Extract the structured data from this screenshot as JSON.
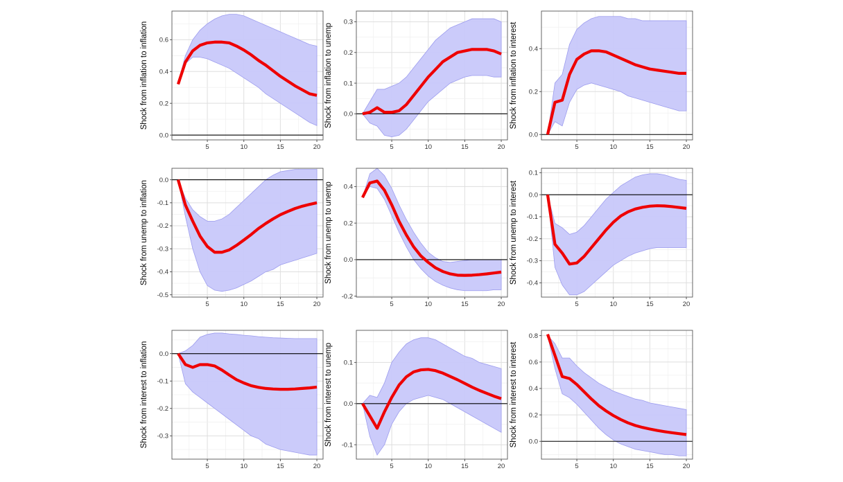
{
  "chart_data": [
    {
      "type": "line",
      "ylabel": "Shock from  inflation  to inflation",
      "x": [
        1,
        2,
        3,
        4,
        5,
        6,
        7,
        8,
        9,
        10,
        11,
        12,
        13,
        14,
        15,
        16,
        17,
        18,
        19,
        20
      ],
      "ylim": [
        -0.03,
        0.78
      ],
      "yticks": [
        0.0,
        0.2,
        0.4,
        0.6
      ],
      "ytick_labels": [
        "0.0",
        "0.2",
        "0.4",
        "0.6"
      ],
      "xticks": [
        5,
        10,
        15,
        20
      ],
      "xtick_labels": [
        "5",
        "10",
        "15",
        "20"
      ],
      "series": [
        {
          "name": "lower",
          "values": [
            0.33,
            0.45,
            0.49,
            0.49,
            0.48,
            0.46,
            0.44,
            0.42,
            0.39,
            0.36,
            0.33,
            0.3,
            0.26,
            0.23,
            0.2,
            0.17,
            0.14,
            0.11,
            0.08,
            0.06
          ]
        },
        {
          "name": "upper",
          "values": [
            0.33,
            0.5,
            0.6,
            0.66,
            0.7,
            0.73,
            0.75,
            0.76,
            0.76,
            0.75,
            0.73,
            0.71,
            0.69,
            0.67,
            0.65,
            0.63,
            0.61,
            0.59,
            0.57,
            0.56
          ]
        },
        {
          "name": "irf",
          "values": [
            0.32,
            0.46,
            0.53,
            0.565,
            0.58,
            0.585,
            0.585,
            0.58,
            0.56,
            0.535,
            0.505,
            0.47,
            0.44,
            0.405,
            0.37,
            0.34,
            0.31,
            0.285,
            0.26,
            0.25
          ]
        }
      ]
    },
    {
      "type": "line",
      "ylabel": "Shock from  inflation  to unemp",
      "x": [
        1,
        2,
        3,
        4,
        5,
        6,
        7,
        8,
        9,
        10,
        11,
        12,
        13,
        14,
        15,
        16,
        17,
        18,
        19,
        20
      ],
      "ylim": [
        -0.085,
        0.335
      ],
      "yticks": [
        0.0,
        0.1,
        0.2,
        0.3
      ],
      "ytick_labels": [
        "0.0",
        "0.1",
        "0.2",
        "0.3"
      ],
      "xticks": [
        5,
        10,
        15,
        20
      ],
      "xtick_labels": [
        "5",
        "10",
        "15",
        "20"
      ],
      "series": [
        {
          "name": "lower",
          "values": [
            0.0,
            -0.03,
            -0.04,
            -0.07,
            -0.075,
            -0.07,
            -0.05,
            -0.02,
            0.01,
            0.04,
            0.06,
            0.08,
            0.1,
            0.11,
            0.12,
            0.125,
            0.125,
            0.125,
            0.12,
            0.12
          ]
        },
        {
          "name": "upper",
          "values": [
            0.0,
            0.04,
            0.08,
            0.08,
            0.09,
            0.1,
            0.12,
            0.15,
            0.18,
            0.21,
            0.24,
            0.26,
            0.28,
            0.29,
            0.3,
            0.31,
            0.31,
            0.31,
            0.31,
            0.3
          ]
        },
        {
          "name": "irf",
          "values": [
            0.0,
            0.005,
            0.02,
            0.005,
            0.005,
            0.01,
            0.03,
            0.06,
            0.09,
            0.12,
            0.145,
            0.17,
            0.185,
            0.2,
            0.205,
            0.21,
            0.21,
            0.21,
            0.205,
            0.195
          ]
        }
      ]
    },
    {
      "type": "line",
      "ylabel": "Shock from  inflation  to interest",
      "x": [
        1,
        2,
        3,
        4,
        5,
        6,
        7,
        8,
        9,
        10,
        11,
        12,
        13,
        14,
        15,
        16,
        17,
        18,
        19,
        20
      ],
      "ylim": [
        -0.025,
        0.575
      ],
      "yticks": [
        0.0,
        0.2,
        0.4
      ],
      "ytick_labels": [
        "0.0",
        "0.2",
        "0.4"
      ],
      "xticks": [
        5,
        10,
        15,
        20
      ],
      "xtick_labels": [
        "5",
        "10",
        "15",
        "20"
      ],
      "series": [
        {
          "name": "lower",
          "values": [
            0.0,
            0.06,
            0.04,
            0.15,
            0.21,
            0.23,
            0.24,
            0.23,
            0.22,
            0.21,
            0.2,
            0.18,
            0.17,
            0.16,
            0.15,
            0.14,
            0.13,
            0.12,
            0.11,
            0.11
          ]
        },
        {
          "name": "upper",
          "values": [
            0.0,
            0.24,
            0.28,
            0.42,
            0.49,
            0.52,
            0.54,
            0.55,
            0.55,
            0.55,
            0.55,
            0.54,
            0.54,
            0.53,
            0.53,
            0.53,
            0.53,
            0.53,
            0.53,
            0.53
          ]
        },
        {
          "name": "irf",
          "values": [
            0.0,
            0.15,
            0.16,
            0.28,
            0.35,
            0.375,
            0.39,
            0.39,
            0.385,
            0.37,
            0.355,
            0.34,
            0.325,
            0.315,
            0.305,
            0.3,
            0.295,
            0.29,
            0.285,
            0.285
          ]
        }
      ]
    },
    {
      "type": "line",
      "ylabel": "Shock from  unemp  to inflation",
      "x": [
        1,
        2,
        3,
        4,
        5,
        6,
        7,
        8,
        9,
        10,
        11,
        12,
        13,
        14,
        15,
        16,
        17,
        18,
        19,
        20
      ],
      "ylim": [
        -0.51,
        0.05
      ],
      "yticks": [
        0.0,
        -0.1,
        -0.2,
        -0.3,
        -0.4,
        -0.5
      ],
      "ytick_labels": [
        "0.0",
        "-0.1",
        "-0.2",
        "-0.3",
        "-0.4",
        "-0.5"
      ],
      "xticks": [
        5,
        10,
        15,
        20
      ],
      "xtick_labels": [
        "5",
        "10",
        "15",
        "20"
      ],
      "series": [
        {
          "name": "lower",
          "values": [
            0.0,
            -0.16,
            -0.3,
            -0.4,
            -0.46,
            -0.48,
            -0.485,
            -0.48,
            -0.47,
            -0.455,
            -0.44,
            -0.42,
            -0.4,
            -0.39,
            -0.37,
            -0.36,
            -0.35,
            -0.34,
            -0.33,
            -0.32
          ]
        },
        {
          "name": "upper",
          "values": [
            0.0,
            -0.08,
            -0.13,
            -0.16,
            -0.18,
            -0.18,
            -0.17,
            -0.15,
            -0.12,
            -0.09,
            -0.06,
            -0.03,
            0.0,
            0.02,
            0.035,
            0.04,
            0.045,
            0.045,
            0.045,
            0.045
          ]
        },
        {
          "name": "irf",
          "values": [
            0.0,
            -0.11,
            -0.18,
            -0.245,
            -0.29,
            -0.315,
            -0.315,
            -0.305,
            -0.285,
            -0.262,
            -0.238,
            -0.212,
            -0.19,
            -0.17,
            -0.152,
            -0.138,
            -0.125,
            -0.115,
            -0.107,
            -0.1
          ]
        }
      ]
    },
    {
      "type": "line",
      "ylabel": "Shock from  unemp  to unemp",
      "x": [
        1,
        2,
        3,
        4,
        5,
        6,
        7,
        8,
        9,
        10,
        11,
        12,
        13,
        14,
        15,
        16,
        17,
        18,
        19,
        20
      ],
      "ylim": [
        -0.205,
        0.5
      ],
      "yticks": [
        -0.2,
        0.0,
        0.2,
        0.4
      ],
      "ytick_labels": [
        "-0.2",
        "0.0",
        "0.2",
        "0.4"
      ],
      "xticks": [
        5,
        10,
        15,
        20
      ],
      "xtick_labels": [
        "5",
        "10",
        "15",
        "20"
      ],
      "series": [
        {
          "name": "lower",
          "values": [
            0.34,
            0.4,
            0.39,
            0.33,
            0.24,
            0.15,
            0.07,
            0.0,
            -0.05,
            -0.09,
            -0.12,
            -0.14,
            -0.155,
            -0.165,
            -0.17,
            -0.17,
            -0.17,
            -0.17,
            -0.165,
            -0.165
          ]
        },
        {
          "name": "upper",
          "values": [
            0.34,
            0.47,
            0.5,
            0.46,
            0.39,
            0.3,
            0.22,
            0.15,
            0.09,
            0.04,
            0.01,
            -0.01,
            -0.015,
            -0.01,
            -0.005,
            0.0,
            0.0,
            0.0,
            0.0,
            0.0
          ]
        },
        {
          "name": "irf",
          "values": [
            0.34,
            0.42,
            0.43,
            0.38,
            0.3,
            0.21,
            0.135,
            0.07,
            0.02,
            -0.015,
            -0.045,
            -0.065,
            -0.078,
            -0.085,
            -0.086,
            -0.085,
            -0.082,
            -0.078,
            -0.073,
            -0.068
          ]
        }
      ]
    },
    {
      "type": "line",
      "ylabel": "Shock from  unemp  to interest",
      "x": [
        1,
        2,
        3,
        4,
        5,
        6,
        7,
        8,
        9,
        10,
        11,
        12,
        13,
        14,
        15,
        16,
        17,
        18,
        19,
        20
      ],
      "ylim": [
        -0.465,
        0.12
      ],
      "yticks": [
        0.1,
        0.0,
        -0.1,
        -0.2,
        -0.3,
        -0.4
      ],
      "ytick_labels": [
        "0.1",
        "0.0",
        "-0.1",
        "-0.2",
        "-0.3",
        "-0.4"
      ],
      "xticks": [
        5,
        10,
        15,
        20
      ],
      "xtick_labels": [
        "5",
        "10",
        "15",
        "20"
      ],
      "series": [
        {
          "name": "lower",
          "values": [
            0.0,
            -0.33,
            -0.41,
            -0.455,
            -0.455,
            -0.44,
            -0.41,
            -0.38,
            -0.35,
            -0.32,
            -0.3,
            -0.28,
            -0.265,
            -0.255,
            -0.245,
            -0.24,
            -0.24,
            -0.24,
            -0.24,
            -0.24
          ]
        },
        {
          "name": "upper",
          "values": [
            0.0,
            -0.13,
            -0.15,
            -0.18,
            -0.17,
            -0.14,
            -0.1,
            -0.06,
            -0.02,
            0.01,
            0.04,
            0.06,
            0.08,
            0.09,
            0.095,
            0.095,
            0.09,
            0.08,
            0.07,
            0.065
          ]
        },
        {
          "name": "irf",
          "values": [
            0.0,
            -0.225,
            -0.265,
            -0.315,
            -0.31,
            -0.28,
            -0.24,
            -0.2,
            -0.16,
            -0.125,
            -0.097,
            -0.078,
            -0.065,
            -0.057,
            -0.052,
            -0.05,
            -0.051,
            -0.054,
            -0.058,
            -0.062
          ]
        }
      ]
    },
    {
      "type": "line",
      "ylabel": "Shock from  interest  to inflation",
      "x": [
        1,
        2,
        3,
        4,
        5,
        6,
        7,
        8,
        9,
        10,
        11,
        12,
        13,
        14,
        15,
        16,
        17,
        18,
        19,
        20
      ],
      "ylim": [
        -0.385,
        0.085
      ],
      "yticks": [
        0.0,
        -0.1,
        -0.2,
        -0.3
      ],
      "ytick_labels": [
        "0.0",
        "-0.1",
        "-0.2",
        "-0.3"
      ],
      "xticks": [
        5,
        10,
        15,
        20
      ],
      "xtick_labels": [
        "5",
        "10",
        "15",
        "20"
      ],
      "series": [
        {
          "name": "lower",
          "values": [
            0.0,
            -0.11,
            -0.14,
            -0.16,
            -0.18,
            -0.2,
            -0.22,
            -0.24,
            -0.26,
            -0.28,
            -0.3,
            -0.31,
            -0.33,
            -0.34,
            -0.35,
            -0.355,
            -0.36,
            -0.365,
            -0.37,
            -0.37
          ]
        },
        {
          "name": "upper",
          "values": [
            0.0,
            0.01,
            0.03,
            0.06,
            0.07,
            0.075,
            0.075,
            0.072,
            0.07,
            0.067,
            0.065,
            0.062,
            0.06,
            0.058,
            0.057,
            0.056,
            0.055,
            0.055,
            0.055,
            0.055
          ]
        },
        {
          "name": "irf",
          "values": [
            0.0,
            -0.04,
            -0.05,
            -0.04,
            -0.04,
            -0.045,
            -0.06,
            -0.078,
            -0.095,
            -0.107,
            -0.117,
            -0.123,
            -0.127,
            -0.129,
            -0.13,
            -0.13,
            -0.129,
            -0.127,
            -0.125,
            -0.122
          ]
        }
      ]
    },
    {
      "type": "line",
      "ylabel": "Shock from  interest  to unemp",
      "x": [
        1,
        2,
        3,
        4,
        5,
        6,
        7,
        8,
        9,
        10,
        11,
        12,
        13,
        14,
        15,
        16,
        17,
        18,
        19,
        20
      ],
      "ylim": [
        -0.135,
        0.178
      ],
      "yticks": [
        0.1,
        0.0,
        -0.1
      ],
      "ytick_labels": [
        "0.1",
        "0.0",
        "-0.1"
      ],
      "xticks": [
        5,
        10,
        15,
        20
      ],
      "xtick_labels": [
        "5",
        "10",
        "15",
        "20"
      ],
      "series": [
        {
          "name": "lower",
          "values": [
            0.0,
            -0.08,
            -0.125,
            -0.1,
            -0.05,
            -0.02,
            0.0,
            0.01,
            0.015,
            0.02,
            0.015,
            0.01,
            0.0,
            -0.01,
            -0.02,
            -0.03,
            -0.04,
            -0.05,
            -0.06,
            -0.07
          ]
        },
        {
          "name": "upper",
          "values": [
            0.0,
            0.02,
            0.015,
            0.05,
            0.1,
            0.125,
            0.145,
            0.155,
            0.16,
            0.16,
            0.155,
            0.145,
            0.135,
            0.125,
            0.115,
            0.11,
            0.1,
            0.095,
            0.09,
            0.085
          ]
        },
        {
          "name": "irf",
          "values": [
            0.0,
            -0.03,
            -0.06,
            -0.02,
            0.015,
            0.045,
            0.065,
            0.077,
            0.082,
            0.083,
            0.08,
            0.074,
            0.066,
            0.058,
            0.049,
            0.04,
            0.032,
            0.025,
            0.018,
            0.012
          ]
        }
      ]
    },
    {
      "type": "line",
      "ylabel": "Shock from  interest  to interest",
      "x": [
        1,
        2,
        3,
        4,
        5,
        6,
        7,
        8,
        9,
        10,
        11,
        12,
        13,
        14,
        15,
        16,
        17,
        18,
        19,
        20
      ],
      "ylim": [
        -0.135,
        0.84
      ],
      "yticks": [
        0.0,
        0.2,
        0.4,
        0.6,
        0.8
      ],
      "ytick_labels": [
        "0.0",
        "0.2",
        "0.4",
        "0.6",
        "0.8"
      ],
      "xticks": [
        5,
        10,
        15,
        20
      ],
      "xtick_labels": [
        "5",
        "10",
        "15",
        "20"
      ],
      "series": [
        {
          "name": "lower",
          "values": [
            0.8,
            0.55,
            0.36,
            0.33,
            0.28,
            0.22,
            0.16,
            0.1,
            0.05,
            0.01,
            -0.02,
            -0.04,
            -0.06,
            -0.07,
            -0.08,
            -0.09,
            -0.1,
            -0.1,
            -0.11,
            -0.11
          ]
        },
        {
          "name": "upper",
          "values": [
            0.8,
            0.74,
            0.63,
            0.63,
            0.57,
            0.52,
            0.48,
            0.44,
            0.41,
            0.38,
            0.36,
            0.34,
            0.32,
            0.31,
            0.29,
            0.28,
            0.27,
            0.26,
            0.25,
            0.24
          ]
        },
        {
          "name": "irf",
          "values": [
            0.81,
            0.65,
            0.49,
            0.475,
            0.43,
            0.375,
            0.32,
            0.27,
            0.23,
            0.195,
            0.165,
            0.14,
            0.12,
            0.105,
            0.093,
            0.082,
            0.073,
            0.065,
            0.058,
            0.051
          ]
        }
      ]
    }
  ]
}
